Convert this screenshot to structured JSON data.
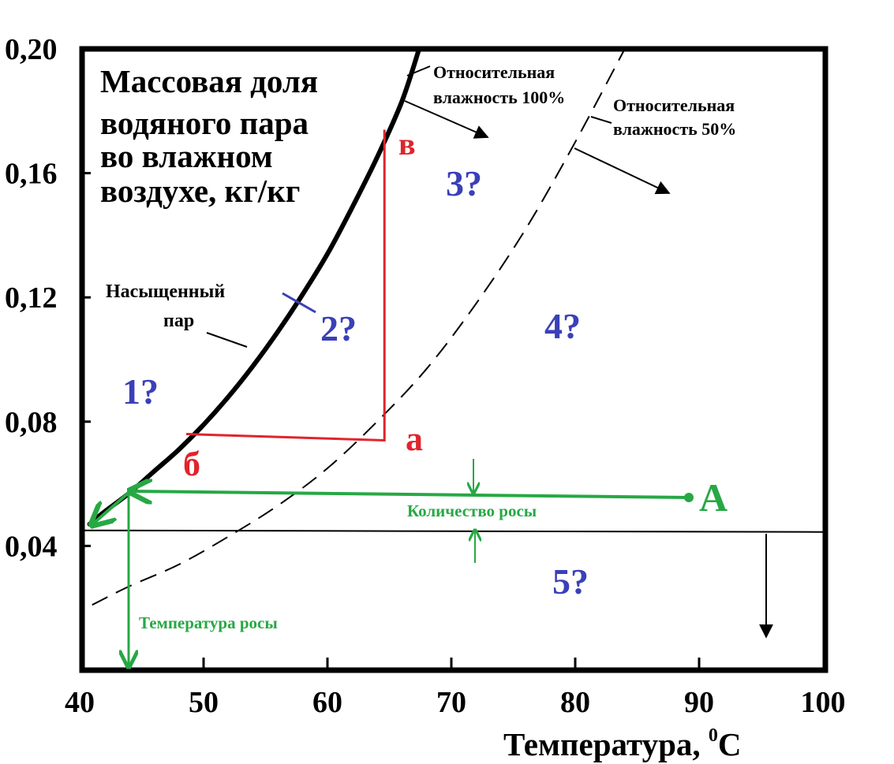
{
  "chart_data": {
    "type": "line",
    "title": "Массовая доля водяного пара во влажном воздухе, кг/кг",
    "title_lines": [
      "Массовая доля",
      "водяного пара",
      "во влажном",
      "воздухе, кг/кг"
    ],
    "xlabel": "Температура, ⁰С",
    "xlabel_main": "Температура, ",
    "xlabel_sup": "0",
    "xlabel_unit": "С",
    "xlim": [
      40,
      100
    ],
    "ylim": [
      0.0,
      0.2
    ],
    "x_ticks": [
      "40",
      "50",
      "60",
      "70",
      "80",
      "90",
      "100"
    ],
    "y_ticks": [
      "0,04",
      "0,08",
      "0,12",
      "0,16",
      "0,20"
    ],
    "grid": false,
    "series": [
      {
        "name": "Насыщенный пар",
        "style": "solid-bold",
        "x": [
          40.8,
          42,
          44,
          46,
          48,
          50,
          52,
          54,
          56,
          58,
          60,
          62,
          64,
          66,
          67.4
        ],
        "y": [
          0.047,
          0.051,
          0.057,
          0.064,
          0.071,
          0.079,
          0.088,
          0.098,
          0.109,
          0.121,
          0.134,
          0.149,
          0.165,
          0.183,
          0.2
        ]
      },
      {
        "name": "Относительная влажность 50%",
        "style": "dashed",
        "x": [
          41,
          44,
          48,
          52,
          56,
          60,
          64,
          68,
          72,
          76,
          80,
          84
        ],
        "y": [
          0.021,
          0.027,
          0.034,
          0.043,
          0.053,
          0.065,
          0.08,
          0.097,
          0.118,
          0.142,
          0.17,
          0.2
        ]
      }
    ],
    "process_path": [
      {
        "label": "б",
        "x": 48.6,
        "y": 0.076
      },
      {
        "label": "а",
        "x": 64.6,
        "y": 0.074
      },
      {
        "label": "в",
        "x": 64.6,
        "y": 0.174
      }
    ],
    "horizontal_line_y": 0.045,
    "point_A": {
      "label": "A",
      "x": 88.9,
      "y": 0.055
    },
    "dew_point": {
      "x": 44,
      "y": 0.056
    },
    "labels": {
      "saturated_line1": "Насыщенный",
      "saturated_line2": "пар",
      "rh100_line1": "Относительная",
      "rh100_line2": "влажность 100%",
      "rh50_line1": "Относительная",
      "rh50_line2": "влажность 50%",
      "dew_amount": "Количество росы",
      "dew_temperature": "Температура росы",
      "point_a": "а",
      "point_b": "б",
      "point_v": "в",
      "point_A": "A",
      "region_1": "1?",
      "region_2": "2?",
      "region_3": "3?",
      "region_4": "4?",
      "region_5": "5?"
    },
    "colors": {
      "frame": "#000000",
      "process": "#e0242c",
      "dew": "#27a844",
      "region": "#3a40b8"
    }
  }
}
